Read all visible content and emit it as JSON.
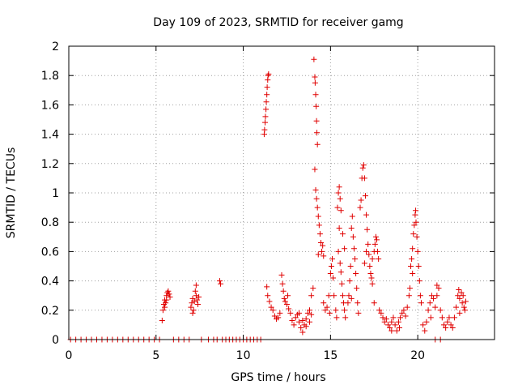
{
  "chart_data": {
    "type": "scatter",
    "title": "Day 109 of 2023, SRMTID for receiver gamg",
    "xlabel": "GPS time / hours",
    "ylabel": "SRMTID / TECUs",
    "xlim": [
      0,
      24.4
    ],
    "ylim": [
      0,
      2
    ],
    "x_ticks": [
      0,
      5,
      10,
      15,
      20
    ],
    "x_tick_labels": [
      "0",
      "5",
      "10",
      "15",
      "20"
    ],
    "y_ticks": [
      0,
      0.2,
      0.4,
      0.6,
      0.8,
      1,
      1.2,
      1.4,
      1.6,
      1.8,
      2
    ],
    "y_tick_labels": [
      "0",
      "0.2",
      "0.4",
      "0.6",
      "0.8",
      "1",
      "1.2",
      "1.4",
      "1.6",
      "1.8",
      "2"
    ],
    "grid": true,
    "marker": "+",
    "color": "#e00000",
    "series": [
      {
        "name": "SRMTID",
        "points": [
          [
            0.1,
            0
          ],
          [
            0.4,
            0
          ],
          [
            0.7,
            0
          ],
          [
            1.0,
            0
          ],
          [
            1.3,
            0
          ],
          [
            1.6,
            0
          ],
          [
            1.9,
            0
          ],
          [
            2.2,
            0
          ],
          [
            2.5,
            0
          ],
          [
            2.8,
            0
          ],
          [
            3.1,
            0
          ],
          [
            3.4,
            0
          ],
          [
            3.7,
            0
          ],
          [
            4.0,
            0
          ],
          [
            4.3,
            0
          ],
          [
            4.6,
            0
          ],
          [
            4.9,
            0
          ],
          [
            5.2,
            0
          ],
          [
            5.35,
            0.13
          ],
          [
            5.4,
            0.2
          ],
          [
            5.45,
            0.24
          ],
          [
            5.5,
            0.27
          ],
          [
            5.55,
            0.25
          ],
          [
            5.6,
            0.3
          ],
          [
            5.65,
            0.32
          ],
          [
            5.7,
            0.33
          ],
          [
            5.75,
            0.31
          ],
          [
            5.8,
            0.29
          ],
          [
            5.5,
            0.22
          ],
          [
            5.6,
            0.27
          ],
          [
            6.0,
            0
          ],
          [
            6.3,
            0
          ],
          [
            6.6,
            0
          ],
          [
            6.9,
            0
          ],
          [
            7.0,
            0.22
          ],
          [
            7.05,
            0.25
          ],
          [
            7.1,
            0.28
          ],
          [
            7.15,
            0.2
          ],
          [
            7.2,
            0.26
          ],
          [
            7.25,
            0.33
          ],
          [
            7.3,
            0.37
          ],
          [
            7.35,
            0.27
          ],
          [
            7.4,
            0.24
          ],
          [
            7.45,
            0.29
          ],
          [
            7.1,
            0.18
          ],
          [
            7.3,
            0.3
          ],
          [
            7.6,
            0
          ],
          [
            8.0,
            0
          ],
          [
            8.3,
            0
          ],
          [
            8.5,
            0
          ],
          [
            8.65,
            0.4
          ],
          [
            8.7,
            0.38
          ],
          [
            8.8,
            0
          ],
          [
            9.0,
            0
          ],
          [
            9.2,
            0
          ],
          [
            9.4,
            0
          ],
          [
            9.6,
            0
          ],
          [
            9.8,
            0
          ],
          [
            10.0,
            0
          ],
          [
            10.2,
            0
          ],
          [
            10.4,
            0
          ],
          [
            10.6,
            0
          ],
          [
            10.8,
            0
          ],
          [
            11.0,
            0
          ],
          [
            11.2,
            1.4
          ],
          [
            11.22,
            1.43
          ],
          [
            11.25,
            1.48
          ],
          [
            11.27,
            1.52
          ],
          [
            11.3,
            1.57
          ],
          [
            11.32,
            1.62
          ],
          [
            11.35,
            1.67
          ],
          [
            11.37,
            1.72
          ],
          [
            11.4,
            1.77
          ],
          [
            11.42,
            1.8
          ],
          [
            11.45,
            1.81
          ],
          [
            11.35,
            0.36
          ],
          [
            11.4,
            0.3
          ],
          [
            11.5,
            0.26
          ],
          [
            11.6,
            0.22
          ],
          [
            11.7,
            0.2
          ],
          [
            11.8,
            0.16
          ],
          [
            11.9,
            0.14
          ],
          [
            12.0,
            0.15
          ],
          [
            12.1,
            0.18
          ],
          [
            12.2,
            0.44
          ],
          [
            12.25,
            0.38
          ],
          [
            12.3,
            0.33
          ],
          [
            12.35,
            0.28
          ],
          [
            12.4,
            0.26
          ],
          [
            12.5,
            0.24
          ],
          [
            12.55,
            0.3
          ],
          [
            12.6,
            0.21
          ],
          [
            12.7,
            0.18
          ],
          [
            12.8,
            0.13
          ],
          [
            12.9,
            0.1
          ],
          [
            13.0,
            0.15
          ],
          [
            13.1,
            0.17
          ],
          [
            13.2,
            0.12
          ],
          [
            13.3,
            0.08
          ],
          [
            13.4,
            0.05
          ],
          [
            13.5,
            0.1
          ],
          [
            13.6,
            0.14
          ],
          [
            13.7,
            0.18
          ],
          [
            13.8,
            0.2
          ],
          [
            13.9,
            0.3
          ],
          [
            14.0,
            0.35
          ],
          [
            13.9,
            0.17
          ],
          [
            13.8,
            0.12
          ],
          [
            13.6,
            0.09
          ],
          [
            13.4,
            0.13
          ],
          [
            13.2,
            0.18
          ],
          [
            14.05,
            1.91
          ],
          [
            14.1,
            1.79
          ],
          [
            14.12,
            1.75
          ],
          [
            14.15,
            1.67
          ],
          [
            14.18,
            1.59
          ],
          [
            14.2,
            1.49
          ],
          [
            14.22,
            1.41
          ],
          [
            14.25,
            1.33
          ],
          [
            14.1,
            1.16
          ],
          [
            14.15,
            1.02
          ],
          [
            14.2,
            0.96
          ],
          [
            14.25,
            0.9
          ],
          [
            14.3,
            0.84
          ],
          [
            14.35,
            0.78
          ],
          [
            14.4,
            0.72
          ],
          [
            14.45,
            0.66
          ],
          [
            14.5,
            0.6
          ],
          [
            14.55,
            0.64
          ],
          [
            14.6,
            0.57
          ],
          [
            14.3,
            0.58
          ],
          [
            14.6,
            0.25
          ],
          [
            14.7,
            0.2
          ],
          [
            14.8,
            0.22
          ],
          [
            14.9,
            0.3
          ],
          [
            15.0,
            0.45
          ],
          [
            15.05,
            0.5
          ],
          [
            15.1,
            0.55
          ],
          [
            15.15,
            0.42
          ],
          [
            15.2,
            0.3
          ],
          [
            14.95,
            0.18
          ],
          [
            15.3,
            0.2
          ],
          [
            15.35,
            0.15
          ],
          [
            15.4,
            0.9
          ],
          [
            15.45,
            1.0
          ],
          [
            15.5,
            1.04
          ],
          [
            15.55,
            0.96
          ],
          [
            15.6,
            0.88
          ],
          [
            15.5,
            0.76
          ],
          [
            15.45,
            0.6
          ],
          [
            15.55,
            0.52
          ],
          [
            15.6,
            0.46
          ],
          [
            15.65,
            0.38
          ],
          [
            15.7,
            0.3
          ],
          [
            15.75,
            0.25
          ],
          [
            15.8,
            0.2
          ],
          [
            15.85,
            0.15
          ],
          [
            15.7,
            0.72
          ],
          [
            15.8,
            0.62
          ],
          [
            16.0,
            0.25
          ],
          [
            16.05,
            0.3
          ],
          [
            16.1,
            0.4
          ],
          [
            16.15,
            0.5
          ],
          [
            16.2,
            0.76
          ],
          [
            16.25,
            0.84
          ],
          [
            16.3,
            0.7
          ],
          [
            16.35,
            0.62
          ],
          [
            16.4,
            0.55
          ],
          [
            16.45,
            0.45
          ],
          [
            16.5,
            0.35
          ],
          [
            16.55,
            0.25
          ],
          [
            16.6,
            0.18
          ],
          [
            16.2,
            0.28
          ],
          [
            16.7,
            0.9
          ],
          [
            16.75,
            0.95
          ],
          [
            16.8,
            1.1
          ],
          [
            16.85,
            1.17
          ],
          [
            16.9,
            1.19
          ],
          [
            16.95,
            1.1
          ],
          [
            17.0,
            0.98
          ],
          [
            17.05,
            0.85
          ],
          [
            17.1,
            0.75
          ],
          [
            17.15,
            0.65
          ],
          [
            17.2,
            0.58
          ],
          [
            17.25,
            0.5
          ],
          [
            17.3,
            0.45
          ],
          [
            17.35,
            0.42
          ],
          [
            17.4,
            0.38
          ],
          [
            16.95,
            0.52
          ],
          [
            17.05,
            0.6
          ],
          [
            17.4,
            0.55
          ],
          [
            17.5,
            0.6
          ],
          [
            17.55,
            0.65
          ],
          [
            17.6,
            0.7
          ],
          [
            17.65,
            0.68
          ],
          [
            17.7,
            0.6
          ],
          [
            17.75,
            0.55
          ],
          [
            17.5,
            0.25
          ],
          [
            17.8,
            0.2
          ],
          [
            17.9,
            0.18
          ],
          [
            18.0,
            0.15
          ],
          [
            18.1,
            0.12
          ],
          [
            18.2,
            0.14
          ],
          [
            18.3,
            0.1
          ],
          [
            18.4,
            0.08
          ],
          [
            18.5,
            0.12
          ],
          [
            18.6,
            0.15
          ],
          [
            18.7,
            0.1
          ],
          [
            18.8,
            0.06
          ],
          [
            18.9,
            0.12
          ],
          [
            19.0,
            0.15
          ],
          [
            19.1,
            0.18
          ],
          [
            19.2,
            0.2
          ],
          [
            19.3,
            0.16
          ],
          [
            19.4,
            0.22
          ],
          [
            18.5,
            0.06
          ],
          [
            18.95,
            0.08
          ],
          [
            19.5,
            0.3
          ],
          [
            19.55,
            0.35
          ],
          [
            19.6,
            0.5
          ],
          [
            19.65,
            0.55
          ],
          [
            19.7,
            0.62
          ],
          [
            19.75,
            0.72
          ],
          [
            19.8,
            0.78
          ],
          [
            19.85,
            0.85
          ],
          [
            19.88,
            0.88
          ],
          [
            19.9,
            0.8
          ],
          [
            19.95,
            0.7
          ],
          [
            20.0,
            0.6
          ],
          [
            20.05,
            0.5
          ],
          [
            20.1,
            0.4
          ],
          [
            20.15,
            0.3
          ],
          [
            20.2,
            0.25
          ],
          [
            19.7,
            0.45
          ],
          [
            20.3,
            0.1
          ],
          [
            20.4,
            0.06
          ],
          [
            20.5,
            0.12
          ],
          [
            20.6,
            0.2
          ],
          [
            20.7,
            0.25
          ],
          [
            20.8,
            0.3
          ],
          [
            20.9,
            0.28
          ],
          [
            21.0,
            0.22
          ],
          [
            21.1,
            0.3
          ],
          [
            21.2,
            0.35
          ],
          [
            21.3,
            0.2
          ],
          [
            21.4,
            0.15
          ],
          [
            21.5,
            0.1
          ],
          [
            20.75,
            0.15
          ],
          [
            21.1,
            0.37
          ],
          [
            21.0,
            0
          ],
          [
            21.3,
            0
          ],
          [
            21.6,
            0.08
          ],
          [
            21.7,
            0.12
          ],
          [
            21.8,
            0.15
          ],
          [
            21.9,
            0.1
          ],
          [
            22.0,
            0.08
          ],
          [
            22.1,
            0.15
          ],
          [
            22.2,
            0.22
          ],
          [
            22.3,
            0.3
          ],
          [
            22.35,
            0.34
          ],
          [
            22.4,
            0.28
          ],
          [
            22.5,
            0.32
          ],
          [
            22.55,
            0.25
          ],
          [
            22.6,
            0.3
          ],
          [
            22.65,
            0.22
          ],
          [
            22.7,
            0.2
          ],
          [
            22.75,
            0.26
          ],
          [
            22.4,
            0.18
          ]
        ]
      }
    ]
  }
}
